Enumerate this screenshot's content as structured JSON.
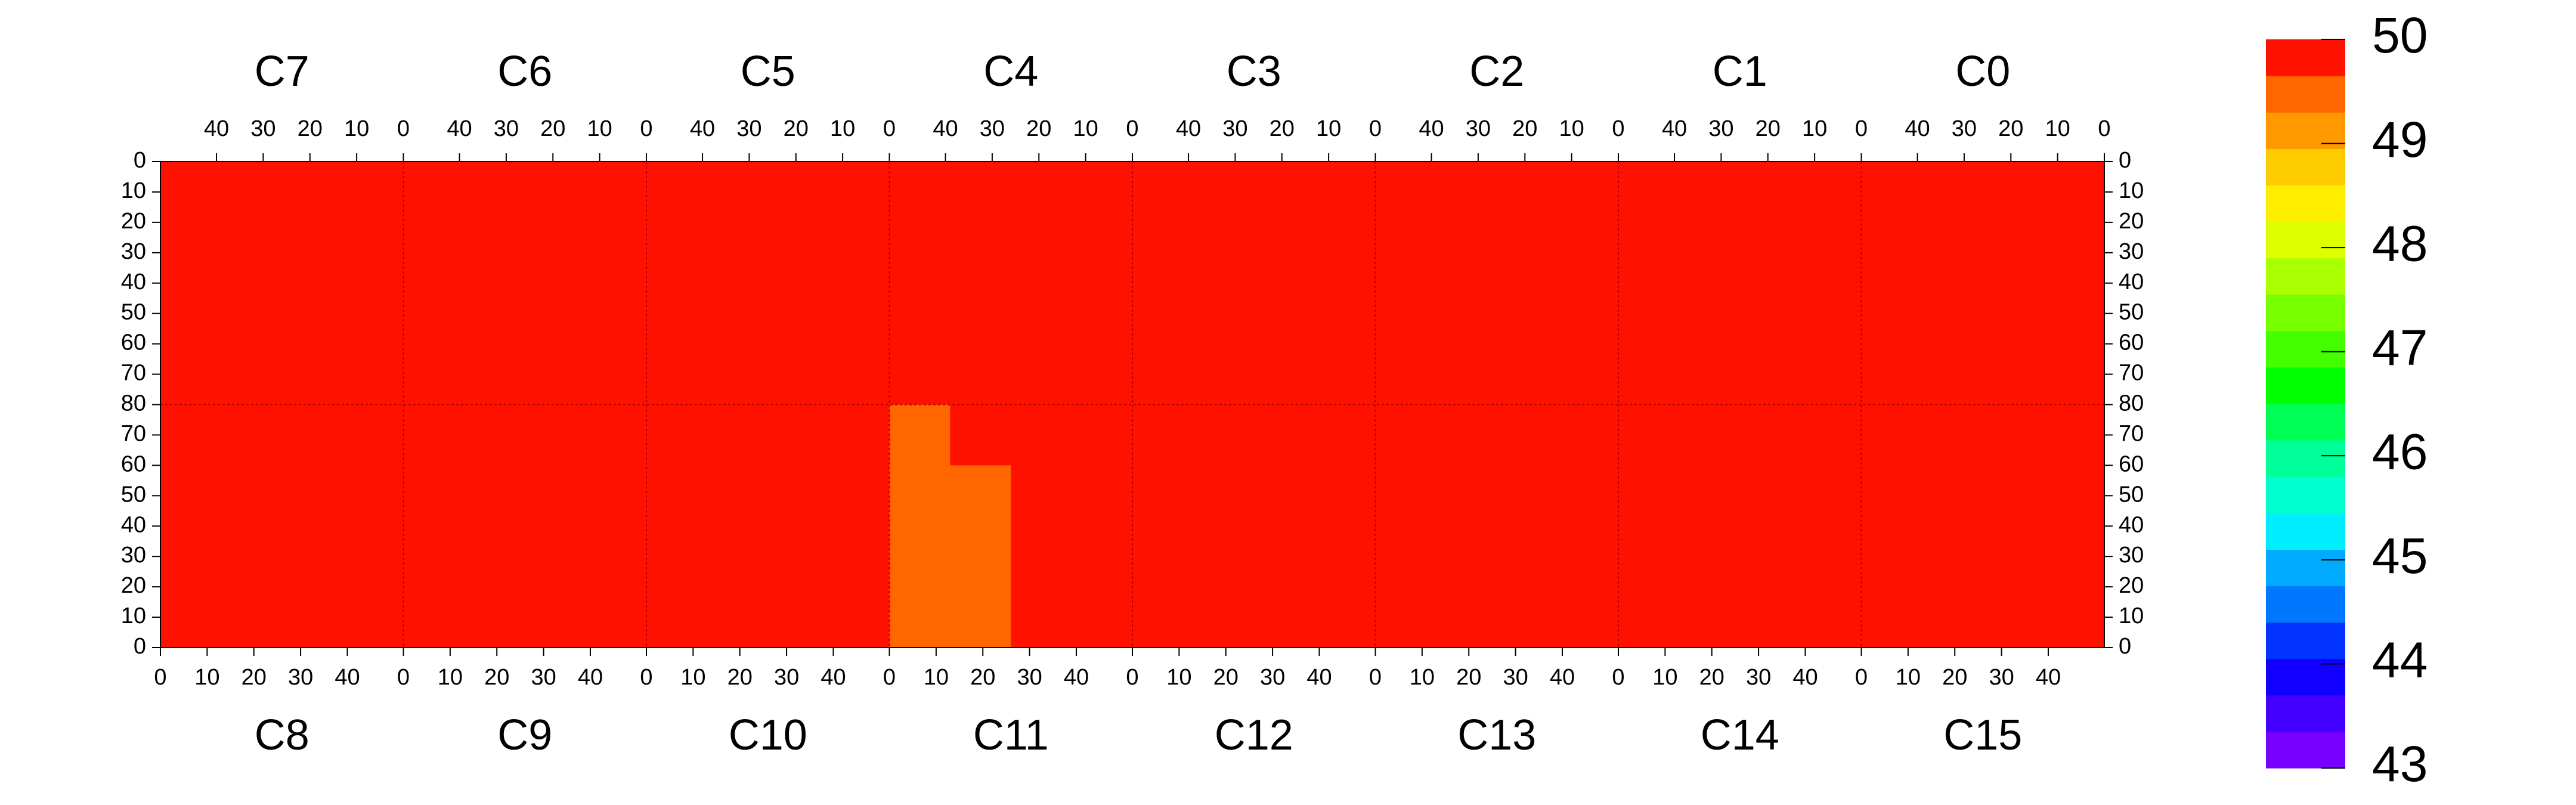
{
  "chart_data": {
    "type": "heatmap",
    "top_labels": [
      "C7",
      "C6",
      "C5",
      "C4",
      "C3",
      "C2",
      "C1",
      "C0"
    ],
    "bottom_labels": [
      "C8",
      "C9",
      "C10",
      "C11",
      "C12",
      "C13",
      "C14",
      "C15"
    ],
    "xlim": [
      0,
      52
    ],
    "top_xticks": [
      40,
      30,
      20,
      10,
      0
    ],
    "bottom_xticks": [
      0,
      10,
      20,
      30,
      40
    ],
    "ylim": [
      0,
      80
    ],
    "yticks_top": [
      0,
      10,
      20,
      30,
      40,
      50,
      60,
      70,
      80
    ],
    "yticks_bottom": [
      70,
      60,
      50,
      40,
      30,
      20,
      10,
      0
    ],
    "zlim": [
      43,
      50
    ],
    "zticks": [
      43,
      44,
      45,
      46,
      47,
      48,
      49,
      50
    ],
    "colors": [
      "#7700ff",
      "#4400ff",
      "#1100ff",
      "#0033ff",
      "#0077ff",
      "#00aaff",
      "#00eeff",
      "#00ffcc",
      "#00ff99",
      "#00ff55",
      "#00ff00",
      "#44ff00",
      "#77ff00",
      "#aaff00",
      "#ddff00",
      "#ffee00",
      "#ffcc00",
      "#ff9900",
      "#ff6600",
      "#ff1100"
    ],
    "z": [
      [
        49.8,
        49.8,
        49.8,
        49.8,
        49.8,
        49.8,
        49.8,
        49.8,
        49.8,
        49.8,
        49.8,
        49.8,
        49.8,
        49.8,
        49.8,
        49.8,
        49.8,
        49.8,
        49.8,
        49.8,
        49.9,
        49.9,
        49.9,
        49.9,
        49.9,
        49.9,
        49.9,
        49.9,
        49.8,
        49.8,
        49.8,
        49.8
      ],
      [
        49.8,
        49.8,
        49.8,
        49.8,
        49.8,
        49.8,
        49.8,
        49.8,
        49.8,
        49.8,
        49.8,
        49.8,
        49.8,
        49.8,
        49.8,
        49.8,
        49.8,
        49.8,
        49.8,
        49.8,
        49.8,
        49.9,
        49.9,
        49.9,
        49.9,
        49.9,
        49.9,
        49.9,
        49.8,
        49.8,
        49.8,
        49.8
      ],
      [
        49.8,
        49.8,
        49.8,
        49.8,
        49.8,
        49.8,
        49.8,
        49.8,
        49.8,
        49.8,
        49.8,
        49.7,
        49.8,
        49.8,
        49.8,
        49.8,
        49.8,
        49.8,
        49.8,
        49.8,
        49.8,
        49.9,
        49.9,
        49.9,
        49.9,
        49.9,
        49.9,
        49.9,
        49.8,
        49.8,
        49.8,
        49.8
      ],
      [
        49.8,
        49.8,
        49.8,
        49.8,
        49.8,
        49.8,
        49.8,
        49.8,
        49.8,
        49.8,
        49.8,
        49.8,
        49.8,
        49.8,
        49.8,
        49.8,
        49.8,
        49.8,
        49.8,
        49.8,
        49.8,
        49.9,
        49.9,
        49.9,
        49.9,
        49.9,
        49.9,
        49.9,
        49.9,
        49.9,
        49.9,
        49.8
      ],
      [
        49.8,
        49.8,
        49.8,
        49.8,
        49.8,
        49.8,
        49.8,
        49.8,
        49.8,
        49.8,
        49.8,
        49.8,
        49.6,
        49.7,
        49.8,
        49.8,
        49.8,
        49.8,
        49.8,
        49.8,
        49.8,
        49.9,
        49.9,
        49.9,
        49.9,
        49.9,
        49.9,
        49.9,
        49.9,
        49.9,
        49.9,
        49.9
      ],
      [
        49.8,
        49.8,
        49.8,
        49.8,
        49.8,
        49.8,
        49.8,
        49.8,
        49.8,
        49.8,
        49.8,
        49.8,
        49.5,
        49.5,
        49.8,
        49.8,
        49.8,
        49.8,
        49.8,
        49.8,
        49.8,
        49.9,
        49.9,
        49.9,
        49.9,
        49.9,
        49.9,
        49.9,
        49.9,
        49.9,
        49.9,
        49.9
      ],
      [
        49.8,
        49.8,
        49.8,
        49.8,
        49.8,
        49.8,
        49.8,
        49.8,
        49.8,
        49.8,
        49.8,
        49.8,
        49.5,
        49.6,
        49.8,
        49.8,
        49.8,
        49.8,
        49.8,
        49.8,
        49.8,
        49.9,
        49.9,
        49.9,
        49.9,
        49.9,
        49.9,
        49.9,
        49.9,
        49.9,
        49.9,
        49.9
      ],
      [
        49.8,
        49.8,
        49.8,
        49.8,
        49.8,
        49.8,
        49.8,
        49.8,
        49.8,
        49.8,
        49.8,
        49.8,
        49.4,
        49.6,
        49.8,
        49.8,
        49.8,
        49.8,
        49.8,
        49.8,
        49.8,
        49.9,
        49.9,
        49.9,
        49.9,
        49.9,
        49.9,
        49.9,
        49.9,
        49.9,
        49.9,
        49.9
      ]
    ]
  }
}
